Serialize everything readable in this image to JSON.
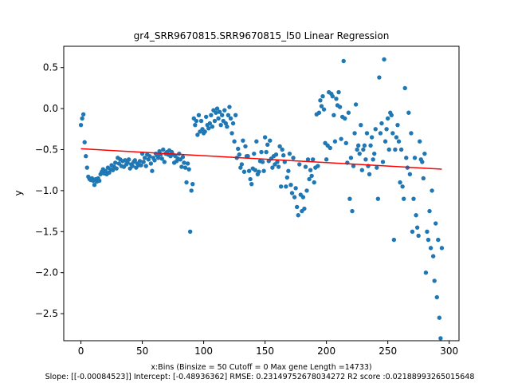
{
  "chart_data": {
    "type": "scatter",
    "title": "gr4_SRR9670815.SRR9670815_l50 Linear Regression",
    "xlabel": "x:Bins  (Binsize = 50 Cutoff = 0 Max gene Length =14733)",
    "ylabel": "y",
    "footer": "Slope: [[-0.00084523]] Intercept: [-0.48936362] RMSE: 0.23149752678034272 R2 score :0.02188993265015648",
    "xlim": [
      -14,
      308
    ],
    "ylim": [
      -2.83,
      0.76
    ],
    "xticks": [
      0,
      50,
      100,
      150,
      200,
      250,
      300
    ],
    "yticks": [
      -2.5,
      -2.0,
      -1.5,
      -1.0,
      -0.5,
      0.0,
      0.5
    ],
    "ytick_labels": [
      "−2.5",
      "−2.0",
      "−1.5",
      "−1.0",
      "−0.5",
      "0.0",
      "0.5"
    ],
    "grid": false,
    "colors": {
      "points": "#1f77b4",
      "line": "#ff0000"
    },
    "regression": {
      "slope": -0.00084523,
      "intercept": -0.48936362,
      "x_range": [
        0,
        294
      ]
    },
    "x": [
      0,
      1,
      2,
      3,
      4,
      5,
      6,
      7,
      8,
      9,
      10,
      11,
      12,
      13,
      14,
      15,
      16,
      17,
      18,
      19,
      20,
      21,
      22,
      23,
      24,
      25,
      26,
      27,
      28,
      29,
      30,
      31,
      32,
      33,
      34,
      35,
      36,
      37,
      38,
      39,
      40,
      41,
      42,
      43,
      44,
      45,
      46,
      47,
      48,
      49,
      50,
      51,
      52,
      53,
      54,
      55,
      56,
      57,
      58,
      59,
      60,
      61,
      62,
      63,
      64,
      65,
      66,
      67,
      68,
      69,
      70,
      71,
      72,
      73,
      74,
      75,
      76,
      77,
      78,
      79,
      80,
      81,
      82,
      83,
      84,
      85,
      86,
      87,
      88,
      89,
      90,
      91,
      92,
      93,
      94,
      95,
      96,
      97,
      98,
      99,
      100,
      101,
      102,
      103,
      104,
      105,
      106,
      107,
      108,
      109,
      110,
      111,
      112,
      113,
      114,
      115,
      116,
      117,
      118,
      119,
      120,
      121,
      122,
      123,
      124,
      125,
      126,
      127,
      128,
      129,
      130,
      131,
      132,
      133,
      134,
      135,
      136,
      137,
      138,
      139,
      140,
      141,
      142,
      143,
      144,
      145,
      146,
      147,
      148,
      149,
      150,
      151,
      152,
      153,
      154,
      155,
      156,
      157,
      158,
      159,
      160,
      161,
      162,
      163,
      164,
      165,
      166,
      167,
      168,
      169,
      170,
      171,
      172,
      173,
      174,
      175,
      176,
      177,
      178,
      179,
      180,
      181,
      182,
      183,
      184,
      185,
      186,
      187,
      188,
      189,
      190,
      191,
      192,
      193,
      194,
      195,
      196,
      197,
      198,
      199,
      200,
      201,
      202,
      203,
      204,
      205,
      206,
      207,
      208,
      209,
      210,
      211,
      212,
      213,
      214,
      215,
      216,
      217,
      218,
      219,
      220,
      221,
      222,
      223,
      224,
      225,
      226,
      227,
      228,
      229,
      230,
      231,
      232,
      233,
      234,
      235,
      236,
      237,
      238,
      239,
      240,
      241,
      242,
      243,
      244,
      245,
      246,
      247,
      248,
      249,
      250,
      251,
      252,
      253,
      254,
      255,
      256,
      257,
      258,
      259,
      260,
      261,
      262,
      263,
      264,
      265,
      266,
      267,
      268,
      269,
      270,
      271,
      272,
      273,
      274,
      275,
      276,
      277,
      278,
      279,
      280,
      281,
      282,
      283,
      284,
      285,
      286,
      287,
      288,
      289,
      290,
      291,
      292,
      293,
      294
    ],
    "y": [
      -0.2,
      -0.12,
      -0.07,
      -0.41,
      -0.58,
      -0.72,
      -0.83,
      -0.86,
      -0.87,
      -0.85,
      -0.88,
      -0.93,
      -0.86,
      -0.89,
      -0.85,
      -0.88,
      -0.8,
      -0.77,
      -0.74,
      -0.79,
      -0.76,
      -0.8,
      -0.72,
      -0.78,
      -0.74,
      -0.69,
      -0.75,
      -0.71,
      -0.66,
      -0.73,
      -0.6,
      -0.67,
      -0.62,
      -0.7,
      -0.64,
      -0.71,
      -0.63,
      -0.68,
      -0.66,
      -0.62,
      -0.73,
      -0.68,
      -0.7,
      -0.65,
      -0.63,
      -0.72,
      -0.67,
      -0.69,
      -0.64,
      -0.69,
      -0.55,
      -0.65,
      -0.6,
      -0.7,
      -0.56,
      -0.62,
      -0.58,
      -0.67,
      -0.76,
      -0.6,
      -0.63,
      -0.55,
      -0.57,
      -0.6,
      -0.52,
      -0.56,
      -0.61,
      -0.5,
      -0.65,
      -0.55,
      -0.53,
      -0.56,
      -0.51,
      -0.58,
      -0.53,
      -0.56,
      -0.66,
      -0.58,
      -0.64,
      -0.61,
      -0.55,
      -0.62,
      -0.71,
      -0.59,
      -0.66,
      -0.72,
      -0.9,
      -0.67,
      -0.74,
      -1.5,
      -1.0,
      -0.92,
      -0.12,
      -0.2,
      -0.15,
      -0.32,
      -0.08,
      -0.28,
      -0.15,
      -0.25,
      -0.3,
      -0.28,
      -0.1,
      -0.2,
      -0.24,
      -0.18,
      -0.08,
      -0.22,
      -0.02,
      -0.15,
      -0.05,
      0.0,
      -0.12,
      -0.04,
      -0.2,
      -0.08,
      -0.15,
      -0.02,
      -0.18,
      -0.22,
      -0.08,
      0.02,
      -0.12,
      -0.3,
      -0.18,
      -0.4,
      -0.08,
      -0.6,
      -0.49,
      -0.56,
      -0.72,
      -0.68,
      -0.39,
      -0.77,
      -0.46,
      -0.58,
      -0.58,
      -0.76,
      -0.86,
      -0.92,
      -0.73,
      -0.55,
      -0.75,
      -0.4,
      -0.8,
      -0.77,
      -0.64,
      -0.53,
      -0.65,
      -0.76,
      -0.35,
      -0.53,
      -0.44,
      -0.64,
      -0.39,
      -0.61,
      -0.72,
      -0.58,
      -0.68,
      -0.56,
      -0.65,
      -0.71,
      -0.46,
      -0.95,
      -0.5,
      -0.57,
      -0.65,
      -0.95,
      -0.84,
      -0.76,
      -0.55,
      -0.93,
      -1.03,
      -0.6,
      -1.08,
      -0.97,
      -1.2,
      -1.3,
      -0.68,
      -1.05,
      -1.25,
      -1.08,
      -1.22,
      -0.71,
      -1.0,
      -0.62,
      -0.86,
      -0.75,
      -0.82,
      -0.62,
      -0.9,
      -0.72,
      -0.07,
      -0.7,
      -0.05,
      0.1,
      0.03,
      0.15,
      -0.01,
      -0.42,
      -0.62,
      -0.45,
      0.2,
      -0.48,
      0.18,
      0.15,
      -0.08,
      -0.4,
      0.12,
      0.04,
      0.2,
      0.02,
      -0.37,
      -0.1,
      0.58,
      -0.12,
      -0.42,
      -0.66,
      -0.05,
      -1.1,
      -0.6,
      -1.25,
      -0.7,
      -0.3,
      0.05,
      -0.5,
      -0.45,
      -0.55,
      -0.2,
      -0.75,
      -0.5,
      -0.45,
      -0.62,
      -0.3,
      -0.7,
      -0.8,
      -0.45,
      -0.35,
      -0.62,
      -0.55,
      -0.25,
      -0.72,
      -1.1,
      0.38,
      -0.3,
      -0.18,
      -0.65,
      0.6,
      -0.4,
      -0.25,
      -0.12,
      -0.5,
      -0.05,
      -0.08,
      -0.3,
      -1.6,
      -0.5,
      -0.35,
      -0.2,
      -0.4,
      -0.9,
      -0.5,
      -0.95,
      -1.1,
      0.25,
      -0.6,
      -0.72,
      -0.05,
      -0.8,
      -0.3,
      -1.5,
      -1.1,
      -0.6,
      -1.3,
      -1.45,
      -1.55,
      -0.4,
      -0.62,
      -0.65,
      -0.85,
      -0.55,
      -2.0,
      -1.5,
      -1.6,
      -1.25,
      -1.7,
      -1.0,
      -1.8,
      -2.1,
      -1.4,
      -2.3,
      -1.6,
      -2.55,
      -2.8,
      -1.7
    ]
  }
}
